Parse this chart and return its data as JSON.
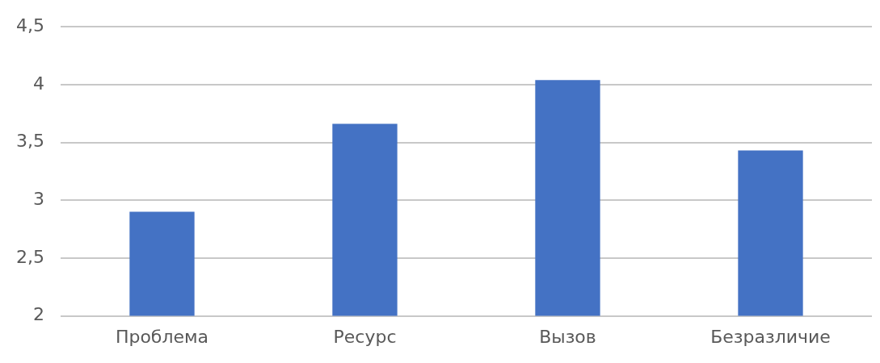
{
  "chart_data": {
    "type": "bar",
    "categories": [
      "Проблема",
      "Ресурс",
      "Вызов",
      "Безразличие"
    ],
    "values": [
      2.9,
      3.66,
      4.04,
      3.43
    ],
    "color": "#4472c4",
    "ylim": [
      2,
      4.5
    ],
    "yticks": [
      2,
      {
        "value": 2.5,
        "label": "2,5"
      },
      3,
      {
        "value": 3.5,
        "label": "3,5"
      },
      4,
      {
        "value": 4.5,
        "label": "4,5"
      }
    ],
    "grid": "y"
  }
}
